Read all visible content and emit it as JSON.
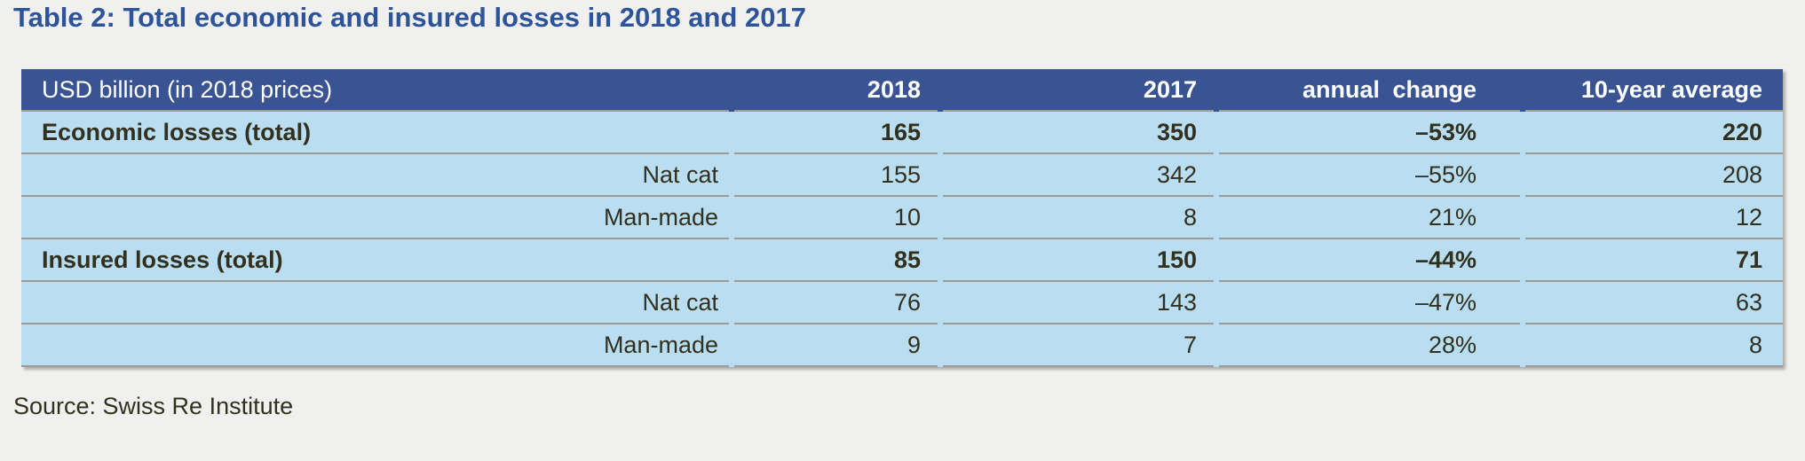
{
  "title": "Table 2: Total economic and insured losses in 2018 and 2017",
  "source": "Source: Swiss Re Institute",
  "table": {
    "header": {
      "unit_label": "USD billion (in 2018 prices)",
      "columns": [
        "2018",
        "2017",
        "annual change",
        "10-year average"
      ]
    },
    "rows": [
      {
        "label": "Economic losses (total)",
        "bold": true,
        "values": [
          "165",
          "350",
          "–53%",
          "220"
        ]
      },
      {
        "label": "Nat cat",
        "bold": false,
        "values": [
          "155",
          "342",
          "–55%",
          "208"
        ]
      },
      {
        "label": "Man-made",
        "bold": false,
        "values": [
          "10",
          "8",
          "21%",
          "12"
        ]
      },
      {
        "label": "Insured losses (total)",
        "bold": true,
        "values": [
          "85",
          "150",
          "–44%",
          "71"
        ]
      },
      {
        "label": "Nat cat",
        "bold": false,
        "values": [
          "76",
          "143",
          "–47%",
          "63"
        ]
      },
      {
        "label": "Man-made",
        "bold": false,
        "values": [
          "9",
          "7",
          "28%",
          "8"
        ]
      }
    ]
  },
  "chart_data": {
    "type": "table",
    "title": "Table 2: Total economic and insured losses in 2018 and 2017",
    "unit": "USD billion (in 2018 prices)",
    "columns": [
      "2018",
      "2017",
      "annual change",
      "10-year average"
    ],
    "row_labels": [
      "Economic losses (total)",
      "Nat cat",
      "Man-made",
      "Insured losses (total)",
      "Nat cat",
      "Man-made"
    ],
    "values": [
      [
        165,
        350,
        -53,
        220
      ],
      [
        155,
        342,
        -55,
        208
      ],
      [
        10,
        8,
        21,
        12
      ],
      [
        85,
        150,
        -44,
        71
      ],
      [
        76,
        143,
        -47,
        63
      ],
      [
        9,
        7,
        28,
        8
      ]
    ],
    "annual_change_unit": "%"
  },
  "colors": {
    "title_blue": "#2d549b",
    "header_bg": "#3a5493",
    "row_bg": "#b9ddf1",
    "separator_gray": "#9b9b9b",
    "text": "#32301f",
    "page_bg": "#f0f0ee"
  }
}
